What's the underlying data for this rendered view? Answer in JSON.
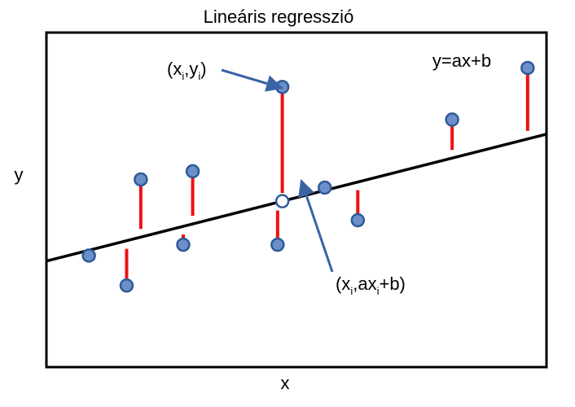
{
  "title": "Lineáris regresszió",
  "x_label": "x",
  "y_label": "y",
  "line_label": "y=ax+b",
  "annotations": {
    "observed_point": {
      "open": "(x",
      "sub1": "i",
      "mid": ",y",
      "sub2": "i",
      "close": ")"
    },
    "fitted_point": {
      "open": "(x",
      "sub1": "i",
      "mid": ",ax",
      "sub2": "i",
      "close": "+b)"
    }
  },
  "colors": {
    "point_fill": "#6c8fca",
    "point_stroke": "#2f5a96",
    "residual": "#ee1111",
    "line": "#000000",
    "arrow": "#3a64a4"
  },
  "chart_data": {
    "type": "scatter",
    "regression_line": {
      "slope": 0.44,
      "intercept": 0.5
    },
    "points": [
      {
        "x": 0.9,
        "y": 0.7
      },
      {
        "x": 1.7,
        "y": -0.4
      },
      {
        "x": 2.0,
        "y": 3.5
      },
      {
        "x": 2.9,
        "y": 1.1
      },
      {
        "x": 3.1,
        "y": 3.8
      },
      {
        "x": 4.9,
        "y": 1.1
      },
      {
        "x": 5.0,
        "y": 6.9
      },
      {
        "x": 5.9,
        "y": 3.2
      },
      {
        "x": 6.6,
        "y": 2.0
      },
      {
        "x": 8.6,
        "y": 5.7
      },
      {
        "x": 10.2,
        "y": 7.6
      }
    ],
    "highlighted_point_index": 6,
    "xlim": [
      0,
      10.6
    ],
    "ylim": [
      -3.4,
      8.9
    ],
    "grid": false
  }
}
